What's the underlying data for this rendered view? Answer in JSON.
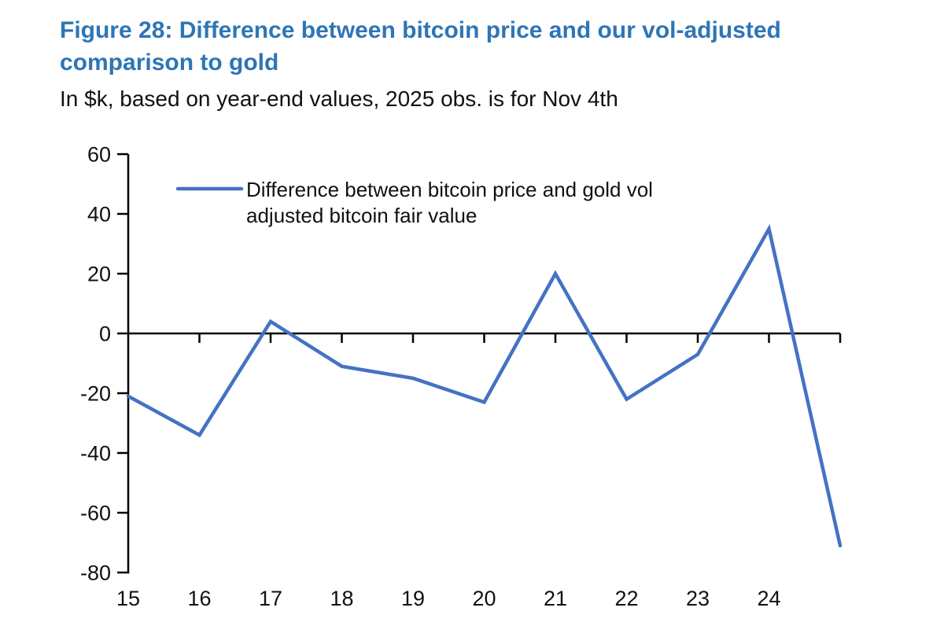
{
  "header": {
    "title_lines": [
      "Figure 28: Difference between bitcoin price and our vol-adjusted",
      "comparison to gold"
    ],
    "title": "Figure 28: Difference between bitcoin price and our vol-adjusted comparison to gold",
    "subtitle": "In $k, based on year-end values, 2025 obs. is for Nov 4th"
  },
  "legend": {
    "lines": [
      "Difference between bitcoin price and gold vol",
      "adjusted bitcoin fair value"
    ]
  },
  "colors": {
    "title": "#2e75b6",
    "text": "#111111",
    "axis": "#000000",
    "line": "#4472c4"
  },
  "chart_data": {
    "type": "line",
    "title": "Figure 28: Difference between bitcoin price and our vol-adjusted comparison to gold",
    "subtitle": "In $k, based on year-end values, 2025 obs. is for Nov 4th",
    "x": [
      2015,
      2016,
      2017,
      2018,
      2019,
      2020,
      2021,
      2022,
      2023,
      2024,
      2025
    ],
    "x_tick_labels": [
      "15",
      "16",
      "17",
      "18",
      "19",
      "20",
      "21",
      "22",
      "23",
      "24"
    ],
    "series": [
      {
        "name": "Difference between bitcoin price and gold vol adjusted bitcoin fair value",
        "values": [
          -21,
          -34,
          4,
          -11,
          -15,
          -23,
          20,
          -22,
          -7,
          35,
          -71
        ]
      }
    ],
    "y_ticks": [
      60,
      40,
      20,
      0,
      -20,
      -40,
      -60,
      -80
    ],
    "ylim": [
      -80,
      60
    ],
    "xlabel": "",
    "ylabel": "",
    "grid": false,
    "legend_position": "top-left-inside",
    "line_color": "#4472c4"
  }
}
